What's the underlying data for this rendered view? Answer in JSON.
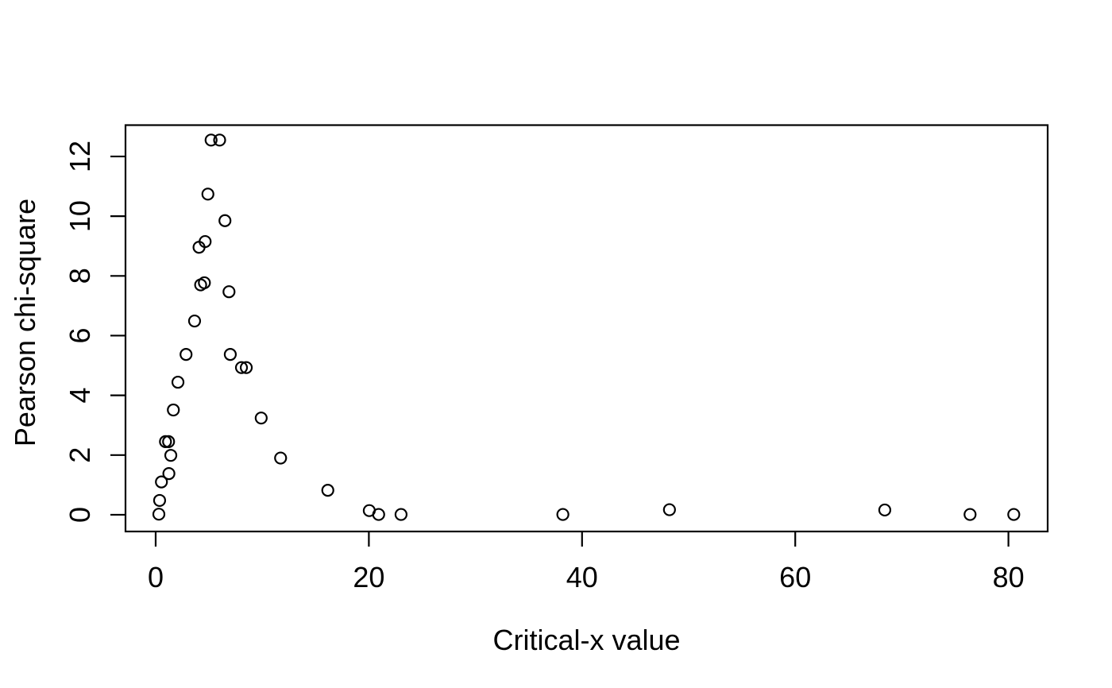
{
  "chart_data": {
    "type": "scatter",
    "title": "",
    "xlabel": "Critical-x value",
    "ylabel": "Pearson chi-square",
    "x_ticks": [
      0,
      20,
      40,
      60,
      80
    ],
    "y_ticks": [
      0,
      2,
      4,
      6,
      8,
      10,
      12
    ],
    "xlim": [
      -2.83,
      83.68
    ],
    "ylim": [
      -0.56,
      13.05
    ],
    "grid": false,
    "legend": "none",
    "marker": "open-circle",
    "marker_color": "#000000",
    "axis_color": "#000000",
    "background": "#ffffff",
    "points": [
      {
        "x": 0.3,
        "y": 0.02
      },
      {
        "x": 0.37,
        "y": 0.48
      },
      {
        "x": 0.54,
        "y": 1.1
      },
      {
        "x": 0.92,
        "y": 2.45
      },
      {
        "x": 1.21,
        "y": 2.45
      },
      {
        "x": 1.24,
        "y": 1.38
      },
      {
        "x": 1.42,
        "y": 1.99
      },
      {
        "x": 1.66,
        "y": 3.51
      },
      {
        "x": 2.09,
        "y": 4.44
      },
      {
        "x": 2.85,
        "y": 5.37
      },
      {
        "x": 3.65,
        "y": 6.49
      },
      {
        "x": 4.07,
        "y": 8.96
      },
      {
        "x": 4.22,
        "y": 7.7
      },
      {
        "x": 4.57,
        "y": 7.77
      },
      {
        "x": 4.64,
        "y": 9.15
      },
      {
        "x": 4.9,
        "y": 10.74
      },
      {
        "x": 5.2,
        "y": 12.55
      },
      {
        "x": 6.0,
        "y": 12.55
      },
      {
        "x": 6.5,
        "y": 9.85
      },
      {
        "x": 6.88,
        "y": 7.47
      },
      {
        "x": 7.0,
        "y": 5.37
      },
      {
        "x": 8.05,
        "y": 4.93
      },
      {
        "x": 8.5,
        "y": 4.93
      },
      {
        "x": 9.9,
        "y": 3.24
      },
      {
        "x": 11.72,
        "y": 1.9
      },
      {
        "x": 16.15,
        "y": 0.82
      },
      {
        "x": 20.04,
        "y": 0.14
      },
      {
        "x": 20.92,
        "y": 0.01
      },
      {
        "x": 23.02,
        "y": 0.01
      },
      {
        "x": 38.2,
        "y": 0.01
      },
      {
        "x": 48.2,
        "y": 0.17
      },
      {
        "x": 68.4,
        "y": 0.16
      },
      {
        "x": 76.4,
        "y": 0.01
      },
      {
        "x": 80.5,
        "y": 0.01
      }
    ]
  }
}
